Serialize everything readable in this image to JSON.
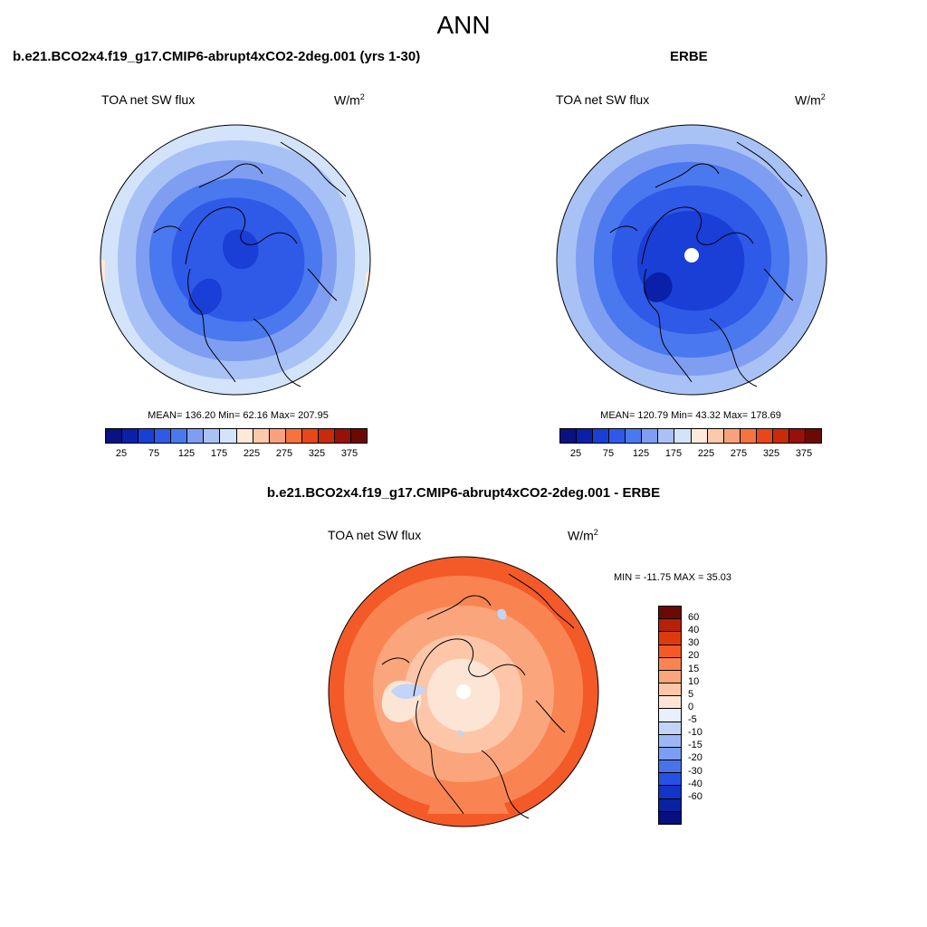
{
  "figure": {
    "title": "ANN"
  },
  "panels": [
    {
      "title": "b.e21.BCO2x4.f19_g17.CMIP6-abrupt4xCO2-2deg.001 (yrs 1-30)",
      "variable": "TOA net SW flux",
      "units": "W/m",
      "units_exp": "2",
      "stats": "MEAN= 136.20  Min=  62.16  Max= 207.95"
    },
    {
      "title": "ERBE",
      "variable": "TOA net SW flux",
      "units": "W/m",
      "units_exp": "2",
      "stats": "MEAN= 120.79  Min=  43.32  Max= 178.69"
    },
    {
      "title": "b.e21.BCO2x4.f19_g17.CMIP6-abrupt4xCO2-2deg.001 - ERBE",
      "variable": "TOA net SW flux",
      "units": "W/m",
      "units_exp": "2",
      "stats": "MIN = -11.75 MAX =  35.03"
    }
  ],
  "colorbars": {
    "abs": {
      "colors": [
        "#0a1180",
        "#0a20a8",
        "#1a3fd6",
        "#2f5ae8",
        "#4a78ee",
        "#7f9ef2",
        "#a9c2f6",
        "#d3e3fa",
        "#fde9da",
        "#fbc9ab",
        "#f9a17c",
        "#f4733f",
        "#e8461b",
        "#c82a0c",
        "#97100a",
        "#6b0a04"
      ],
      "ticks": [
        "25",
        "75",
        "125",
        "175",
        "225",
        "275",
        "325",
        "375"
      ]
    },
    "diff": {
      "colors": [
        "#6b0a04",
        "#b52207",
        "#dd3a0e",
        "#f35a28",
        "#f98452",
        "#fba57d",
        "#fdc6a8",
        "#fde5d5",
        "#e9f0fc",
        "#c2d4f8",
        "#9cb8f4",
        "#7b9ef0",
        "#4a73ea",
        "#2552e4",
        "#1235c8",
        "#0a22a0",
        "#061080"
      ],
      "ticks": [
        "60",
        "40",
        "30",
        "20",
        "15",
        "10",
        "5",
        "0",
        "-5",
        "-10",
        "-15",
        "-20",
        "-30",
        "-40",
        "-60"
      ]
    }
  },
  "chart_data": [
    {
      "type": "map",
      "projection": "north polar stereographic",
      "title": "b.e21.BCO2x4.f19_g17.CMIP6-abrupt4xCO2-2deg.001 (yrs 1-30)",
      "field": "TOA net SW flux",
      "units": "W/m2",
      "mean": 136.2,
      "min": 62.16,
      "max": 207.95,
      "levels": [
        25,
        50,
        75,
        100,
        125,
        150,
        175,
        200,
        225,
        250,
        275,
        300,
        325,
        350,
        375
      ]
    },
    {
      "type": "map",
      "projection": "north polar stereographic",
      "title": "ERBE",
      "field": "TOA net SW flux",
      "units": "W/m2",
      "mean": 120.79,
      "min": 43.32,
      "max": 178.69,
      "levels": [
        25,
        50,
        75,
        100,
        125,
        150,
        175,
        200,
        225,
        250,
        275,
        300,
        325,
        350,
        375
      ]
    },
    {
      "type": "map",
      "projection": "north polar stereographic",
      "title": "b.e21.BCO2x4.f19_g17.CMIP6-abrupt4xCO2-2deg.001 - ERBE",
      "field": "TOA net SW flux",
      "units": "W/m2",
      "min": -11.75,
      "max": 35.03,
      "levels": [
        -60,
        -40,
        -30,
        -20,
        -15,
        -10,
        -5,
        0,
        5,
        10,
        15,
        20,
        30,
        40,
        60
      ]
    }
  ]
}
